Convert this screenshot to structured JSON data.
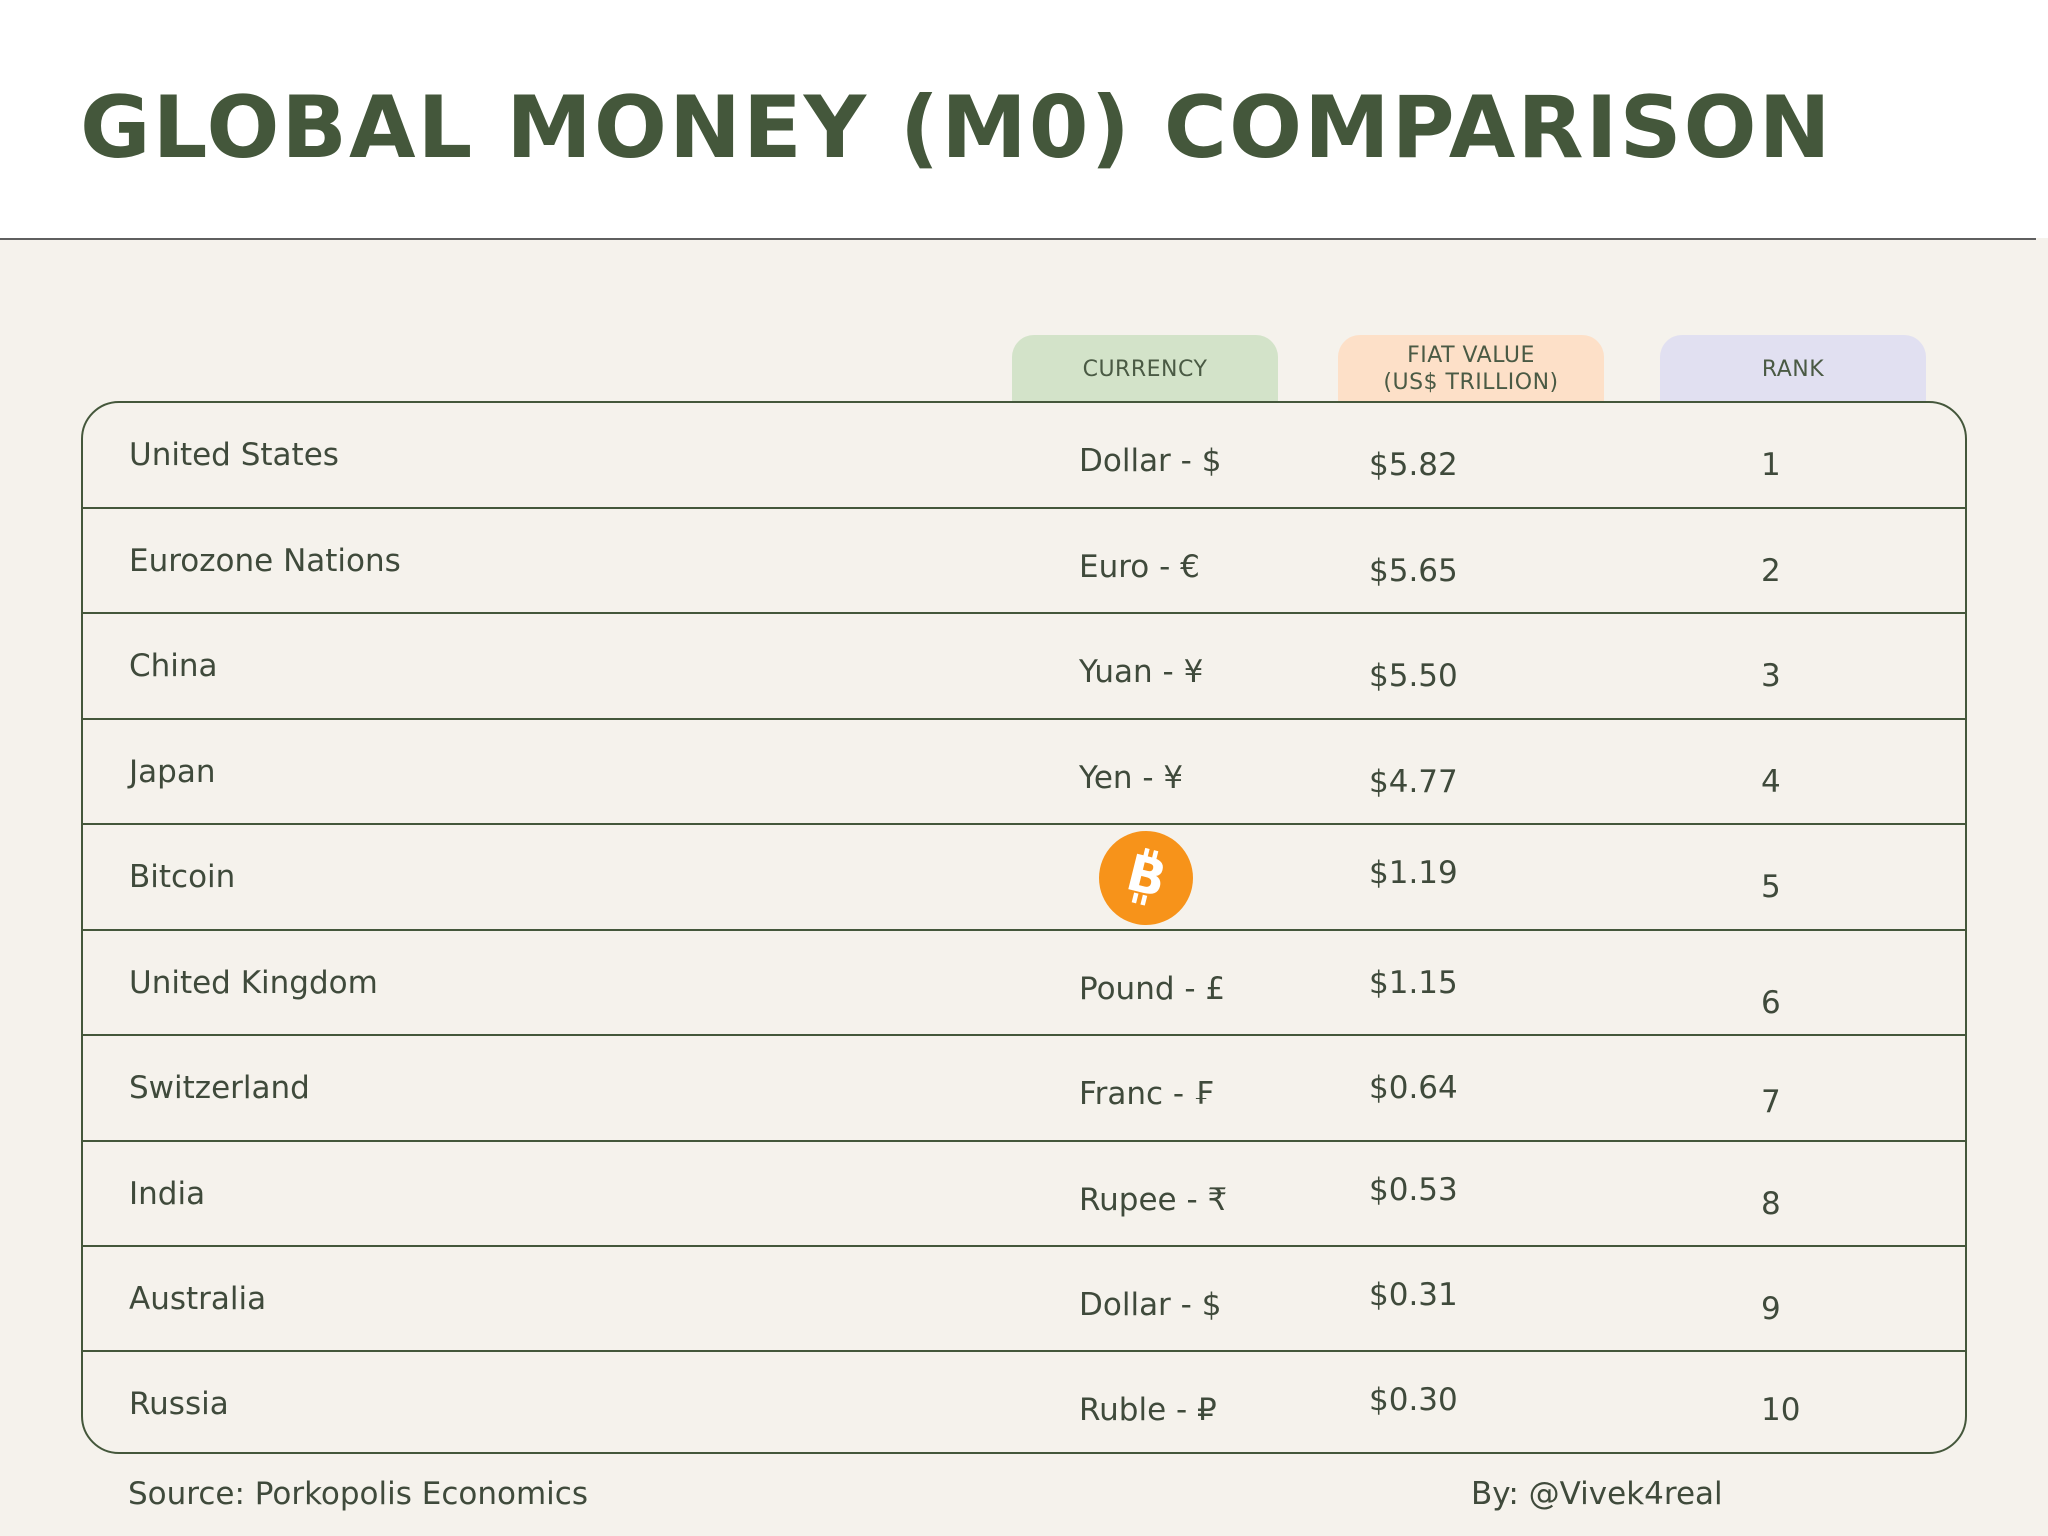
{
  "title": "GLOBAL MONEY (M0) COMPARISON",
  "columns": {
    "currency": "CURRENCY",
    "fiat_value": "FIAT VALUE\n(US$ TRILLION)",
    "rank": "RANK"
  },
  "rows": [
    {
      "country": "United States",
      "currency": "Dollar - $",
      "value": "$5.82",
      "rank": "1"
    },
    {
      "country": "Eurozone Nations",
      "currency": "Euro - €",
      "value": "$5.65",
      "rank": "2"
    },
    {
      "country": "China",
      "currency": "Yuan - ¥",
      "value": "$5.50",
      "rank": "3"
    },
    {
      "country": "Japan",
      "currency": "Yen - ¥",
      "value": "$4.77",
      "rank": "4"
    },
    {
      "country": "Bitcoin",
      "currency_icon": "bitcoin-icon",
      "value": "$1.19",
      "rank": "5"
    },
    {
      "country": "United Kingdom",
      "currency": "Pound - £",
      "value": "$1.15",
      "rank": "6"
    },
    {
      "country": "Switzerland",
      "currency": "Franc - ₣",
      "value": "$0.64",
      "rank": "7"
    },
    {
      "country": "India",
      "currency": "Rupee - ₹",
      "value": "$0.53",
      "rank": "8"
    },
    {
      "country": "Australia",
      "currency": "Dollar - $",
      "value": "$0.31",
      "rank": "9"
    },
    {
      "country": "Russia",
      "currency": "Ruble - ₽",
      "value": "$0.30",
      "rank": "10"
    }
  ],
  "footer": {
    "source": "Source: Porkopolis Economics",
    "author": "By: @Vivek4real"
  },
  "colors": {
    "title": "#44573b",
    "background": "#f5f2ec",
    "currency_tab": "#d3e3c9",
    "fiat_tab": "#fde0c8",
    "rank_tab": "#e1e0f1",
    "bitcoin": "#f7931a"
  }
}
